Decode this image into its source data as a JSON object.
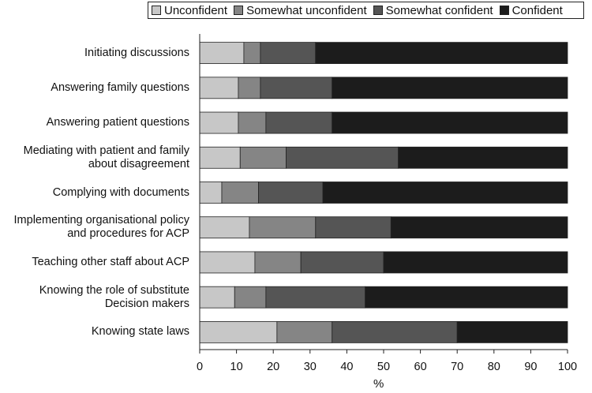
{
  "chart_data": {
    "type": "bar",
    "orientation": "horizontal",
    "stacked": true,
    "categories": [
      "Initiating discussions",
      "Answering family questions",
      "Answering patient questions",
      "Mediating with patient and family\nabout disagreement",
      "Complying with documents",
      "Implementing organisational policy\nand procedures for ACP",
      "Teaching other staff about ACP",
      "Knowing the role of substitute\nDecision makers",
      "Knowing state laws"
    ],
    "series": [
      {
        "name": "Unconfident",
        "color": "#c7c7c7",
        "values": [
          12,
          10.5,
          10.5,
          11,
          6,
          13.5,
          15,
          9.5,
          21
        ]
      },
      {
        "name": "Somewhat unconfident",
        "color": "#858585",
        "values": [
          4.5,
          6,
          7.5,
          12.5,
          10,
          18,
          12.5,
          8.5,
          15
        ]
      },
      {
        "name": "Somewhat confident",
        "color": "#555555",
        "values": [
          15,
          19.5,
          18,
          30.5,
          17.5,
          20.5,
          22.5,
          27,
          34
        ]
      },
      {
        "name": "Confident",
        "color": "#1c1c1c",
        "values": [
          68.5,
          64,
          64,
          46,
          66.5,
          48,
          50,
          55,
          30
        ]
      }
    ],
    "xlabel": "%",
    "ylabel": "",
    "xlim": [
      0,
      100
    ],
    "xticks": [
      "0",
      "10",
      "20",
      "30",
      "40",
      "50",
      "60",
      "70",
      "80",
      "90",
      "100"
    ],
    "grid": false,
    "legend_position": "top"
  }
}
